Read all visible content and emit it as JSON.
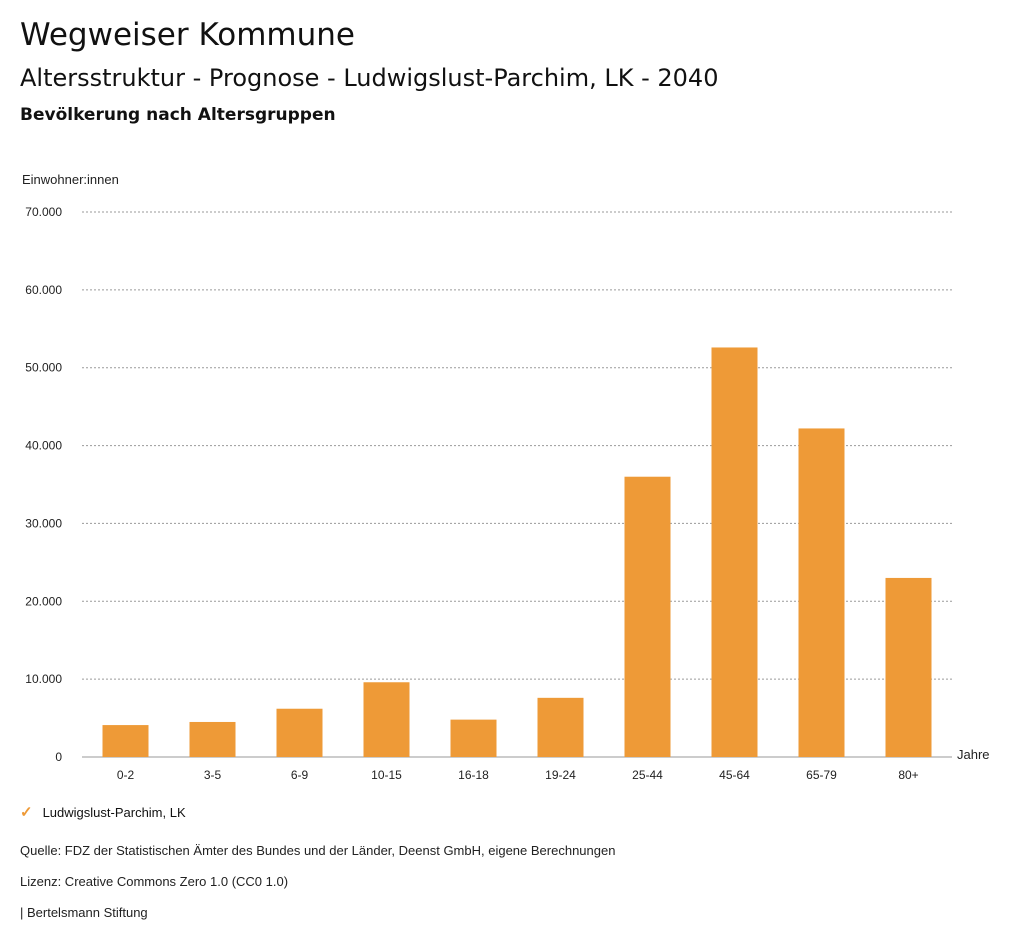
{
  "header": {
    "title": "Wegweiser Kommune",
    "subtitle": "Altersstruktur - Prognose - Ludwigslust-Parchim, LK - 2040",
    "section": "Bevölkerung nach Altersgruppen"
  },
  "chart_data": {
    "type": "bar",
    "ylabel": "Einwohner:innen",
    "xlabel": "Jahre",
    "ylim": [
      0,
      70000
    ],
    "yticks": [
      0,
      10000,
      20000,
      30000,
      40000,
      50000,
      60000,
      70000
    ],
    "ytick_labels": [
      "0",
      "10.000",
      "20.000",
      "30.000",
      "40.000",
      "50.000",
      "60.000",
      "70.000"
    ],
    "categories": [
      "0-2",
      "3-5",
      "6-9",
      "10-15",
      "16-18",
      "19-24",
      "25-44",
      "45-64",
      "65-79",
      "80+"
    ],
    "series": [
      {
        "name": "Ludwigslust-Parchim, LK",
        "values": [
          4100,
          4500,
          6200,
          9600,
          4800,
          7600,
          36000,
          52600,
          42200,
          23000
        ]
      }
    ],
    "color": "#ee9a37",
    "grid": true,
    "legend_position": "bottom-left"
  },
  "footer": {
    "source": "Quelle: FDZ der Statistischen Ämter des Bundes und der Länder, Deenst GmbH, eigene Berechnungen",
    "license": "Lizenz: Creative Commons Zero 1.0 (CC0 1.0)",
    "brand": "| Bertelsmann Stiftung"
  }
}
